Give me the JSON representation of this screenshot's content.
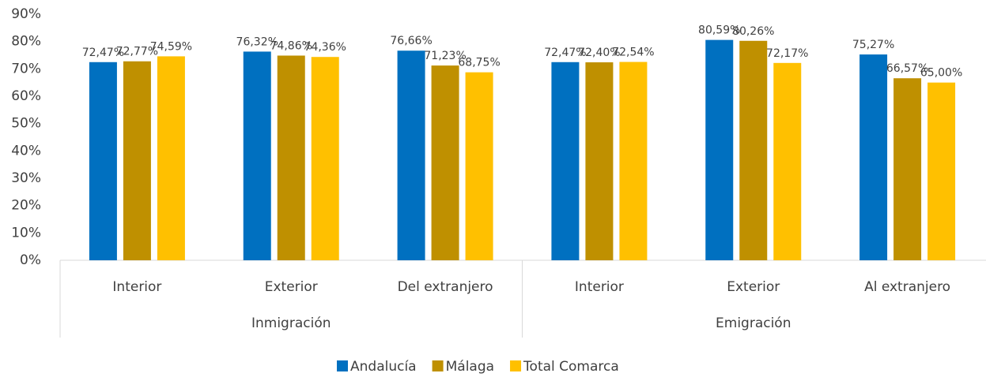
{
  "chart_data": {
    "type": "bar",
    "categories": [
      "Interior",
      "Exterior",
      "Del extranjero",
      "Interior",
      "Exterior",
      "Al extranjero"
    ],
    "groups": [
      "Inmigración",
      "Emigración"
    ],
    "series": [
      {
        "name": "Andalucía",
        "color": "#0070c0",
        "values": [
          72.47,
          76.32,
          76.66,
          72.47,
          80.59,
          75.27
        ],
        "value_labels": [
          "72,47%",
          "76,32%",
          "76,66%",
          "72,47%",
          "80,59%",
          "75,27%"
        ]
      },
      {
        "name": "Málaga",
        "color": "#bf9000",
        "values": [
          72.77,
          74.86,
          71.23,
          72.4,
          80.26,
          66.57
        ],
        "value_labels": [
          "72,77%",
          "74,86%",
          "71,23%",
          "72,40%",
          "80,26%",
          "66,57%"
        ]
      },
      {
        "name": "Total Comarca",
        "color": "#ffc000",
        "values": [
          74.59,
          74.36,
          68.75,
          72.54,
          72.17,
          65.0
        ],
        "value_labels": [
          "74,59%",
          "74,36%",
          "68,75%",
          "72,54%",
          "72,17%",
          "65,00%"
        ]
      }
    ],
    "ylim": [
      0,
      90
    ],
    "yticks": [
      {
        "value": 0,
        "label": "0%"
      },
      {
        "value": 10,
        "label": "10%"
      },
      {
        "value": 20,
        "label": "20%"
      },
      {
        "value": 30,
        "label": "30%"
      },
      {
        "value": 40,
        "label": "40%"
      },
      {
        "value": 50,
        "label": "50%"
      },
      {
        "value": 60,
        "label": "60%"
      },
      {
        "value": 70,
        "label": "70%"
      },
      {
        "value": 80,
        "label": "80%"
      },
      {
        "value": 90,
        "label": "90%"
      }
    ],
    "grid": false,
    "legend": "bottom"
  }
}
